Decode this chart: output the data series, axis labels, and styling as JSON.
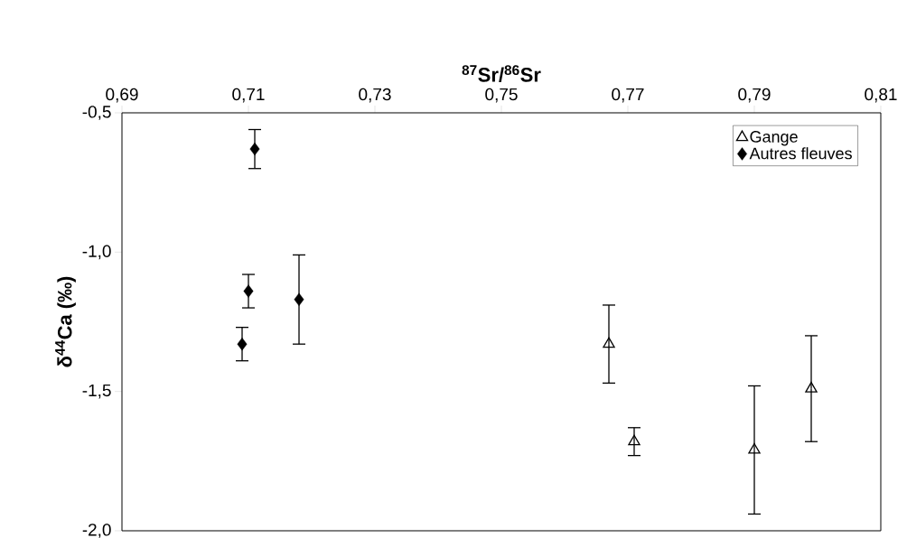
{
  "chart_data": {
    "type": "scatter",
    "xlabel": "**$^{87}$Sr/$^{86}$Sr**",
    "ylabel": "**δ$^{44}$Ca (‰)**",
    "xlim": [
      0.69,
      0.81
    ],
    "xticks": [
      {
        "value": 0.69,
        "label": "0,69"
      },
      {
        "value": 0.71,
        "label": "0,71"
      },
      {
        "value": 0.73,
        "label": "0,73"
      },
      {
        "value": 0.75,
        "label": "0,75"
      },
      {
        "value": 0.77,
        "label": "0,77"
      },
      {
        "value": 0.79,
        "label": "0,79"
      },
      {
        "value": 0.81,
        "label": "0,81"
      }
    ],
    "ylim": [
      -2.0,
      -0.5
    ],
    "yticks": [
      {
        "value": -2.0,
        "label": "-2,0"
      },
      {
        "value": -1.5,
        "label": "-1,5"
      },
      {
        "value": -1.0,
        "label": "-1,0"
      },
      {
        "value": -0.5,
        "label": "-0,5"
      }
    ],
    "legend": "top right",
    "grid": false,
    "series": [
      {
        "name": "Gange",
        "color": "#000000",
        "marker": "triangle",
        "x": [
          0.767,
          0.771,
          0.79,
          0.799
        ],
        "values": [
          -1.33,
          -1.68,
          -1.71,
          -1.49
        ],
        "errors": [
          0.14,
          0.05,
          0.23,
          0.19
        ]
      },
      {
        "name": "Autres fleuves",
        "color": "#000000",
        "marker": "diamond",
        "x": [
          0.711,
          0.71,
          0.709,
          0.718
        ],
        "values": [
          -0.63,
          -1.14,
          -1.33,
          -1.17
        ],
        "errors": [
          0.07,
          0.06,
          0.06,
          0.16
        ]
      }
    ]
  }
}
